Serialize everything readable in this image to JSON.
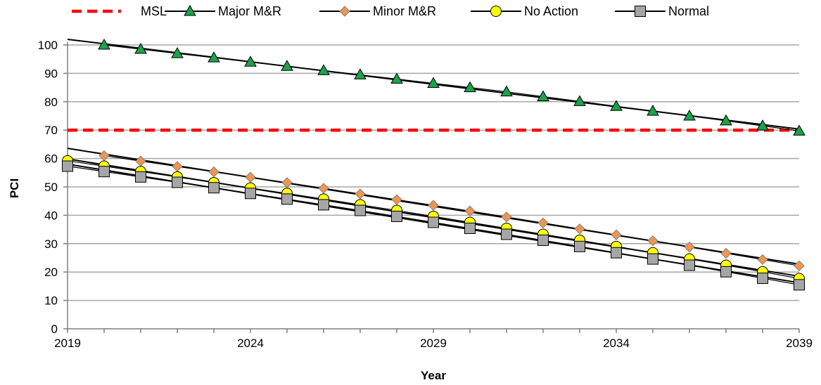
{
  "chart_data": {
    "type": "line",
    "xlabel": "Year",
    "ylabel": "PCI",
    "xlim": [
      2019,
      2039
    ],
    "ylim": [
      0,
      100
    ],
    "x_ticks": [
      2019,
      2024,
      2029,
      2034,
      2039
    ],
    "y_ticks": [
      0,
      10,
      20,
      30,
      40,
      50,
      60,
      70,
      80,
      90,
      100
    ],
    "grid": "horizontal",
    "legend_position": "top",
    "series": [
      {
        "name": "MSL",
        "marker": "none",
        "line_style": "dashed",
        "color": "#ff0000",
        "x": [
          2019,
          2039
        ],
        "values": [
          70,
          70
        ]
      },
      {
        "name": "Major M&R",
        "marker": "triangle",
        "color": "#1aa34a",
        "x": [
          2020,
          2021,
          2022,
          2023,
          2024,
          2025,
          2026,
          2027,
          2028,
          2029,
          2030,
          2031,
          2032,
          2033,
          2034,
          2035,
          2036,
          2037,
          2038,
          2039
        ],
        "values": [
          100,
          98.5,
          97,
          95.5,
          94,
          92.5,
          91,
          89.5,
          88,
          86.5,
          85,
          83.5,
          81.8,
          80.1,
          78.4,
          76.7,
          75,
          73.3,
          71.5,
          69.7
        ]
      },
      {
        "name": "Minor M&R",
        "marker": "diamond",
        "color": "#f0954e",
        "x": [
          2020,
          2021,
          2022,
          2023,
          2024,
          2025,
          2026,
          2027,
          2028,
          2029,
          2030,
          2031,
          2032,
          2033,
          2034,
          2035,
          2036,
          2037,
          2038,
          2039
        ],
        "values": [
          61,
          59.1,
          57.2,
          55.3,
          53.4,
          51.5,
          49.5,
          47.5,
          45.5,
          43.5,
          41.5,
          39.4,
          37.3,
          35.2,
          33.1,
          31,
          28.8,
          26.6,
          24.4,
          22.2
        ]
      },
      {
        "name": "No Action",
        "marker": "circle",
        "color": "#ffff00",
        "x": [
          2019,
          2020,
          2021,
          2022,
          2023,
          2024,
          2025,
          2026,
          2027,
          2028,
          2029,
          2030,
          2031,
          2032,
          2033,
          2034,
          2035,
          2036,
          2037,
          2038,
          2039
        ],
        "values": [
          59.2,
          57.3,
          55.4,
          53.5,
          51.5,
          49.6,
          47.7,
          45.7,
          43.7,
          41.7,
          39.6,
          37.5,
          35.4,
          33.3,
          31.2,
          29,
          26.8,
          24.6,
          22.4,
          20.1,
          17.7
        ]
      },
      {
        "name": "Normal",
        "marker": "square",
        "color": "#a6a6a6",
        "x": [
          2019,
          2020,
          2021,
          2022,
          2023,
          2024,
          2025,
          2026,
          2027,
          2028,
          2029,
          2030,
          2031,
          2032,
          2033,
          2034,
          2035,
          2036,
          2037,
          2038,
          2039
        ],
        "values": [
          57.3,
          55.4,
          53.5,
          51.6,
          49.7,
          47.7,
          45.7,
          43.7,
          41.7,
          39.6,
          37.5,
          35.4,
          33.3,
          31.2,
          29,
          26.8,
          24.6,
          22.4,
          20.1,
          17.8,
          15.5
        ]
      }
    ]
  }
}
